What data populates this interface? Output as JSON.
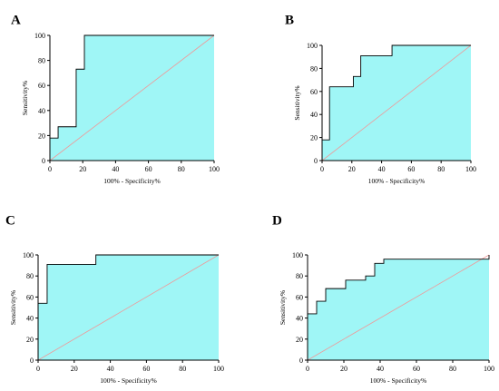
{
  "chart_data": [
    {
      "panel": "A",
      "type": "line",
      "xlabel": "100% - Specificity%",
      "ylabel": "Sensitivity%",
      "xlim": [
        0,
        100
      ],
      "ylim": [
        0,
        100
      ],
      "xticks": [
        0,
        20,
        40,
        60,
        80,
        100
      ],
      "yticks": [
        0,
        20,
        40,
        60,
        80,
        100
      ],
      "fill_color": "#9ff6f6",
      "diagonal_color": "#ee9a9a",
      "points": [
        [
          0,
          0
        ],
        [
          0,
          18
        ],
        [
          5,
          18
        ],
        [
          5,
          27
        ],
        [
          16,
          27
        ],
        [
          16,
          73
        ],
        [
          21,
          73
        ],
        [
          21,
          100
        ],
        [
          100,
          100
        ]
      ]
    },
    {
      "panel": "B",
      "type": "line",
      "xlabel": "100% - Specificity%",
      "ylabel": "Sensitivity%",
      "xlim": [
        0,
        100
      ],
      "ylim": [
        0,
        100
      ],
      "xticks": [
        0,
        20,
        40,
        60,
        80,
        100
      ],
      "yticks": [
        0,
        20,
        40,
        60,
        80,
        100
      ],
      "fill_color": "#9ff6f6",
      "diagonal_color": "#ee9a9a",
      "points": [
        [
          0,
          0
        ],
        [
          0,
          18
        ],
        [
          5,
          18
        ],
        [
          5,
          64
        ],
        [
          21,
          64
        ],
        [
          21,
          73
        ],
        [
          26,
          73
        ],
        [
          26,
          91
        ],
        [
          47,
          91
        ],
        [
          47,
          100
        ],
        [
          100,
          100
        ]
      ]
    },
    {
      "panel": "C",
      "type": "line",
      "xlabel": "100% - Specificity%",
      "ylabel": "Sensitivity%",
      "xlim": [
        0,
        100
      ],
      "ylim": [
        0,
        100
      ],
      "xticks": [
        0,
        20,
        40,
        60,
        80,
        100
      ],
      "yticks": [
        0,
        20,
        40,
        60,
        80,
        100
      ],
      "fill_color": "#9ff6f6",
      "diagonal_color": "#ee9a9a",
      "points": [
        [
          0,
          0
        ],
        [
          0,
          54
        ],
        [
          5,
          54
        ],
        [
          5,
          91
        ],
        [
          32,
          91
        ],
        [
          32,
          100
        ],
        [
          100,
          100
        ]
      ]
    },
    {
      "panel": "D",
      "type": "line",
      "xlabel": "100% - Specificity%",
      "ylabel": "Sensitivity%",
      "xlim": [
        0,
        100
      ],
      "ylim": [
        0,
        100
      ],
      "xticks": [
        0,
        20,
        40,
        60,
        80,
        100
      ],
      "yticks": [
        0,
        20,
        40,
        60,
        80,
        100
      ],
      "fill_color": "#9ff6f6",
      "diagonal_color": "#ee9a9a",
      "points": [
        [
          0,
          0
        ],
        [
          0,
          44
        ],
        [
          5,
          44
        ],
        [
          5,
          56
        ],
        [
          10,
          56
        ],
        [
          10,
          68
        ],
        [
          21,
          68
        ],
        [
          21,
          76
        ],
        [
          32,
          76
        ],
        [
          32,
          80
        ],
        [
          37,
          80
        ],
        [
          37,
          92
        ],
        [
          42,
          92
        ],
        [
          42,
          96
        ],
        [
          100,
          96
        ],
        [
          100,
          100
        ]
      ]
    }
  ]
}
